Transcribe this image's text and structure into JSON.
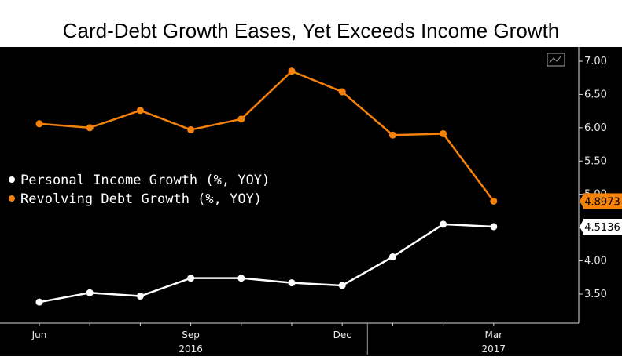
{
  "title": "Card-Debt Growth Eases, Yet Exceeds Income Growth",
  "chart_data": {
    "type": "line",
    "title": "Card-Debt Growth Eases, Yet Exceeds Income Growth",
    "x": [
      "Jun 2016",
      "Jul 2016",
      "Aug 2016",
      "Sep 2016",
      "Oct 2016",
      "Nov 2016",
      "Dec 2016",
      "Jan 2017",
      "Feb 2017",
      "Mar 2017"
    ],
    "series": [
      {
        "name": "Personal Income Growth (%, YOY)",
        "color": "#ffffff",
        "values": [
          3.38,
          3.52,
          3.47,
          3.74,
          3.74,
          3.67,
          3.63,
          4.06,
          4.55,
          4.5136
        ],
        "last_label": "4.5136"
      },
      {
        "name": "Revolving Debt Growth (%, YOY)",
        "color": "#f5820a",
        "values": [
          6.06,
          6.0,
          6.26,
          5.97,
          6.13,
          6.85,
          6.54,
          5.89,
          5.91,
          4.8973
        ],
        "last_label": "4.8973"
      }
    ],
    "y_ticks": [
      "7.00",
      "6.50",
      "6.00",
      "5.50",
      "5.00",
      "4.50",
      "4.00",
      "3.50"
    ],
    "x_tick_labels": [
      {
        "label": "Jun",
        "year": "",
        "index": 0
      },
      {
        "label": "Sep",
        "year": "2016",
        "index": 3
      },
      {
        "label": "Dec",
        "year": "",
        "index": 6
      },
      {
        "label": "Mar",
        "year": "2017",
        "index": 9
      }
    ],
    "ylim": [
      3.0,
      7.1
    ],
    "grid": false,
    "legend": "left",
    "xlabel": "",
    "ylabel": ""
  }
}
